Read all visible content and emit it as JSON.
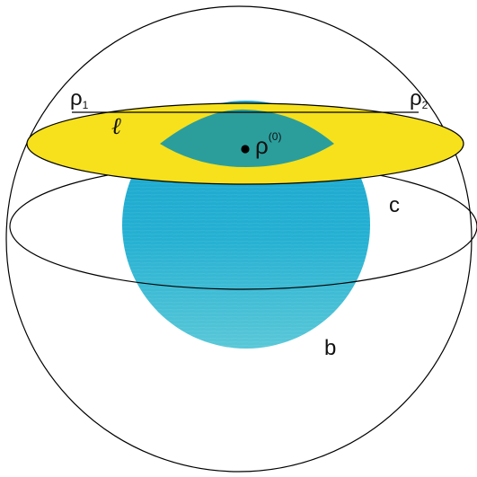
{
  "figure": {
    "labels": {
      "rho1_base": "ρ",
      "rho1_sub": "1",
      "rho2_base": "ρ",
      "rho2_sub": "2",
      "ell": "ℓ",
      "rho0_base": "ρ",
      "rho0_sup": "(0)",
      "c": "c",
      "b": "b"
    },
    "colors": {
      "outline": "#000000",
      "disk_fill": "#f6e11c",
      "ball_light": "#4cc6d8",
      "ball_dark": "#18a8cc",
      "lens_fill": "#2b9e9c",
      "background": "#ffffff"
    }
  }
}
